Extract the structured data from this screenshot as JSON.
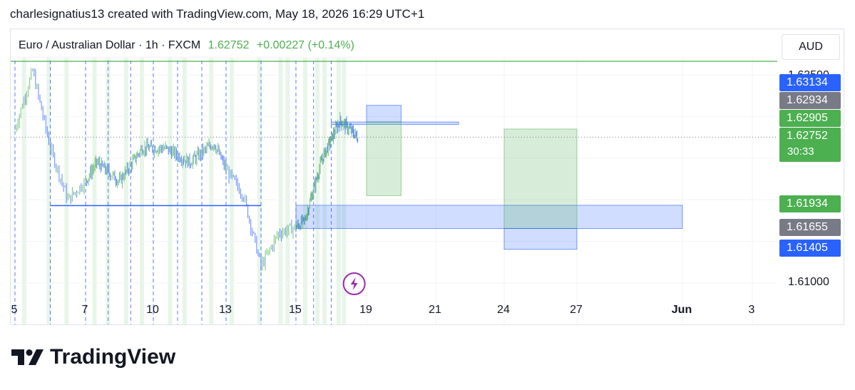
{
  "header": {
    "caption": "charlesignatius13 created with TradingView.com, May 18, 2026 16:29 UTC+1"
  },
  "legend": {
    "symbol": "Euro / Australian Dollar · 1h · FXCM",
    "price": "1.62752",
    "change": "+0.00227 (+0.14%)"
  },
  "currency": "AUD",
  "branding": {
    "name": "TradingView"
  },
  "colors": {
    "up": "#4caf50",
    "down": "#2962ff",
    "grey": "#787b86",
    "accent": "#9c27b0"
  },
  "price_labels": [
    {
      "value": "1.63134",
      "color": "#2962ff"
    },
    {
      "value": "1.62934",
      "color": "#787b86"
    },
    {
      "value": "1.62905",
      "color": "#4caf50"
    },
    {
      "value": "1.62752",
      "color": "#4caf50"
    },
    {
      "value": "1.61934",
      "color": "#4caf50"
    },
    {
      "value": "1.61655",
      "color": "#787b86"
    },
    {
      "value": "1.61405",
      "color": "#2962ff"
    }
  ],
  "countdown": "30:33",
  "chart_data": {
    "type": "candlestick",
    "title": "Euro / Australian Dollar · 1h · FXCM",
    "interval": "1h",
    "y_ticks": [
      "1.63500",
      "1.61000"
    ],
    "x_ticks": [
      "5",
      "7",
      "10",
      "13",
      "15",
      "19",
      "21",
      "24",
      "27",
      "Jun",
      "3"
    ],
    "ylim": [
      1.6075,
      1.6375
    ],
    "current_price": 1.62752,
    "price_series_approx": [
      {
        "x": "May 5",
        "y": 1.6285
      },
      {
        "x": "May 5",
        "y": 1.6355
      },
      {
        "x": "May 6",
        "y": 1.6262
      },
      {
        "x": "May 6",
        "y": 1.62
      },
      {
        "x": "May 7",
        "y": 1.6245
      },
      {
        "x": "May 8",
        "y": 1.6222
      },
      {
        "x": "May 9",
        "y": 1.6262
      },
      {
        "x": "May 10",
        "y": 1.6262
      },
      {
        "x": "May 11",
        "y": 1.6245
      },
      {
        "x": "May 12",
        "y": 1.6268
      },
      {
        "x": "May 13",
        "y": 1.6205
      },
      {
        "x": "May 14",
        "y": 1.612
      },
      {
        "x": "May 14",
        "y": 1.616
      },
      {
        "x": "May 15",
        "y": 1.6175
      },
      {
        "x": "May 16",
        "y": 1.625
      },
      {
        "x": "May 17",
        "y": 1.6295
      },
      {
        "x": "May 18",
        "y": 1.6275
      }
    ],
    "horizontal_line": {
      "price": 1.6193,
      "from": "May 6",
      "to": "May 14"
    },
    "zones": [
      {
        "kind": "blue",
        "from": "May 17",
        "to": "May 22",
        "top": 1.62934,
        "bottom": 1.62905
      },
      {
        "kind": "blue",
        "from": "May 19",
        "to": "May 20",
        "top": 1.63134,
        "bottom": 1.62934
      },
      {
        "kind": "green",
        "from": "May 19",
        "to": "May 20",
        "top": 1.62934,
        "bottom": 1.6205
      },
      {
        "kind": "blue",
        "from": "May 15",
        "to": "Jun 1",
        "top": 1.61934,
        "bottom": 1.61655
      },
      {
        "kind": "green",
        "from": "May 24",
        "to": "May 27",
        "top": 1.6285,
        "bottom": 1.61655
      },
      {
        "kind": "blue",
        "from": "May 24",
        "to": "May 27",
        "top": 1.61655,
        "bottom": 1.61405
      }
    ]
  }
}
